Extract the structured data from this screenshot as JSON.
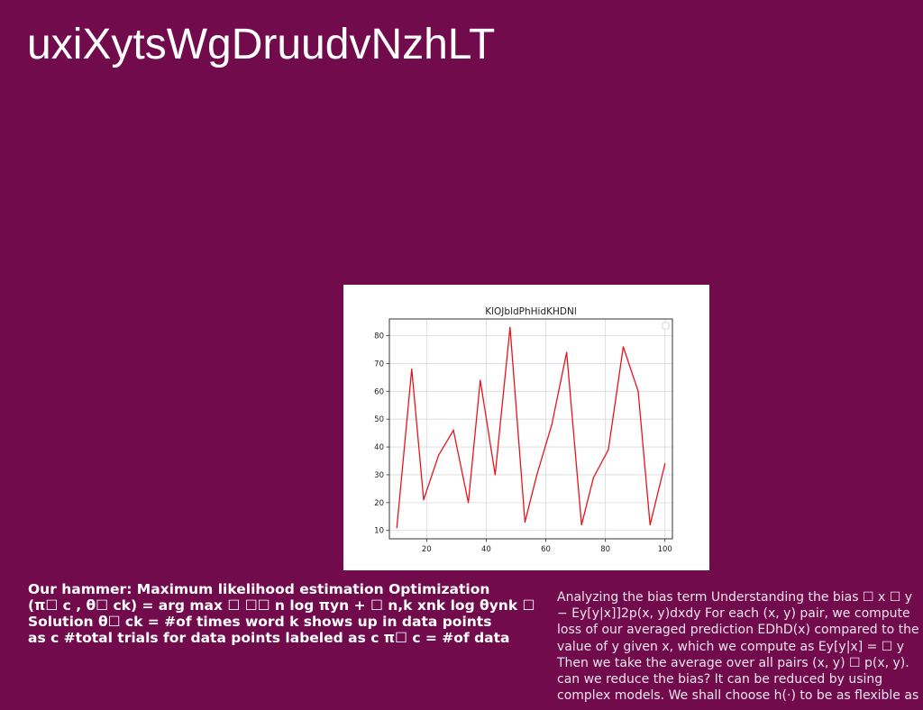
{
  "page": {
    "title": "uxiXytsWgDruudvNzhLT"
  },
  "left_text": [
    "Our hammer: Maximum likelihood estimation Optimization",
    "(π☐ c , θ☐ ck) = arg max ☐ ☐☐ n log πyn + ☐ n,k xnk log θynk ☐",
    "Solution θ☐ ck = #of times word k shows up in data points",
    "as c #total trials for data points labeled as c π☐ c = #of data"
  ],
  "right_text": [
    "Analyzing the bias term Understanding the bias ☐ x ☐ y",
    "− Ey[y|x]]2p(x, y)dxdy For each (x, y) pair, we compute",
    "loss of our averaged prediction EDhD(x) compared to the",
    "value of y given x, which we compute as Ey[y|x] = ☐ y",
    "Then we take the average over all pairs (x, y) ☐ p(x, y).",
    "can we reduce the bias? It can be reduced by using",
    "complex models. We shall choose h(·) to be as flexible as"
  ],
  "chart_data": {
    "type": "line",
    "title": "KlOJbldPhHidKHDNl",
    "xlabel": "",
    "ylabel": "",
    "xlim": [
      7.5,
      102.5
    ],
    "ylim": [
      7,
      86
    ],
    "xticks": [
      20,
      40,
      60,
      80,
      100
    ],
    "yticks": [
      10,
      20,
      30,
      40,
      50,
      60,
      70,
      80
    ],
    "grid": true,
    "legend": "top-right (empty)",
    "series": [
      {
        "color": "#e8141c",
        "x": [
          10,
          15,
          19,
          24,
          29,
          34,
          38,
          43,
          48,
          53,
          57,
          62,
          67,
          72,
          76,
          81,
          86,
          91,
          95,
          100
        ],
        "y": [
          11,
          68,
          21,
          37,
          46,
          20,
          64,
          30,
          83,
          13,
          30,
          48,
          74,
          12,
          29,
          39,
          76,
          60,
          12,
          34
        ]
      }
    ]
  }
}
